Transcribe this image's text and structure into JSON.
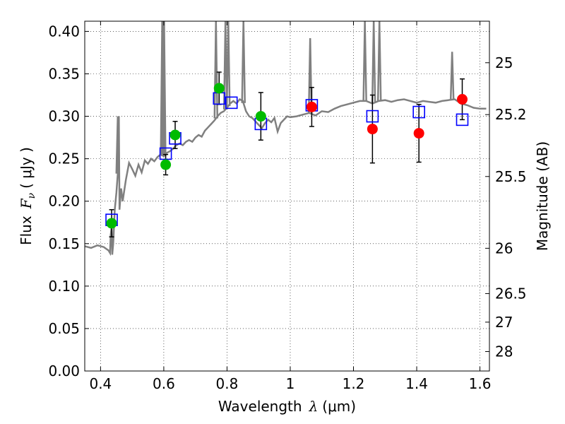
{
  "chart_data": {
    "type": "scatter",
    "title": "",
    "xlabel": {
      "prefix": "Wavelength",
      "symbol": "λ",
      "unit": "(μm)"
    },
    "ylabel": {
      "prefix": "Flux",
      "symbol": "F",
      "subscript": "ν",
      "unit": "( μJy )"
    },
    "ylabel_right": "Magnitude (AB)",
    "xlim": [
      0.35,
      1.63
    ],
    "ylim": [
      0.0,
      0.412
    ],
    "x_ticks": [
      0.4,
      0.6,
      0.8,
      1.0,
      1.2,
      1.4,
      1.6
    ],
    "x_tick_labels": [
      "0.4",
      "0.6",
      "0.8",
      "1",
      "1.2",
      "1.4",
      "1.6"
    ],
    "y_ticks": [
      0.0,
      0.05,
      0.1,
      0.15,
      0.2,
      0.25,
      0.3,
      0.35,
      0.4
    ],
    "y_tick_labels": [
      "0.00",
      "0.05",
      "0.10",
      "0.15",
      "0.20",
      "0.25",
      "0.30",
      "0.35",
      "0.40"
    ],
    "right_ticks": [
      {
        "mag": 25,
        "label": "25"
      },
      {
        "mag": 25.2,
        "label": "25.2"
      },
      {
        "mag": 25.5,
        "label": "25.5"
      },
      {
        "mag": 26,
        "label": "26"
      },
      {
        "mag": 26.5,
        "label": "26.5"
      },
      {
        "mag": 27,
        "label": "27"
      },
      {
        "mag": 28,
        "label": "28"
      }
    ],
    "grid": true,
    "colors": {
      "model": "#808080",
      "green": "#00bb00",
      "red": "#ff0000",
      "box": "#0000ff",
      "error": "#000000"
    },
    "series": [
      {
        "style": "green-circle",
        "points": [
          {
            "x": 0.435,
            "y": 0.174,
            "err": 0.016
          },
          {
            "x": 0.606,
            "y": 0.243,
            "err": 0.012
          },
          {
            "x": 0.636,
            "y": 0.278,
            "err": 0.016
          },
          {
            "x": 0.775,
            "y": 0.333,
            "err": 0.019
          },
          {
            "x": 0.907,
            "y": 0.3,
            "err": 0.028
          }
        ]
      },
      {
        "style": "red-circle",
        "points": [
          {
            "x": 1.068,
            "y": 0.311,
            "err": 0.023
          },
          {
            "x": 1.26,
            "y": 0.285,
            "err": 0.04
          },
          {
            "x": 1.407,
            "y": 0.28,
            "err": 0.034
          },
          {
            "x": 1.544,
            "y": 0.32,
            "err": 0.024
          }
        ]
      },
      {
        "style": "blue-open-square",
        "points": [
          {
            "x": 0.435,
            "y": 0.178
          },
          {
            "x": 0.606,
            "y": 0.256
          },
          {
            "x": 0.636,
            "y": 0.274
          },
          {
            "x": 0.775,
            "y": 0.321
          },
          {
            "x": 0.814,
            "y": 0.316
          },
          {
            "x": 0.907,
            "y": 0.291
          },
          {
            "x": 1.068,
            "y": 0.313
          },
          {
            "x": 1.26,
            "y": 0.3
          },
          {
            "x": 1.407,
            "y": 0.305
          },
          {
            "x": 1.544,
            "y": 0.296
          }
        ]
      },
      {
        "style": "model-line",
        "points": [
          [
            0.35,
            0.147
          ],
          [
            0.37,
            0.145
          ],
          [
            0.39,
            0.148
          ],
          [
            0.41,
            0.146
          ],
          [
            0.425,
            0.142
          ],
          [
            0.43,
            0.139
          ],
          [
            0.432,
            0.16
          ],
          [
            0.435,
            0.17
          ],
          [
            0.437,
            0.137
          ],
          [
            0.44,
            0.15
          ],
          [
            0.445,
            0.19
          ],
          [
            0.45,
            0.21
          ],
          [
            0.455,
            0.235
          ],
          [
            0.458,
            0.3
          ],
          [
            0.46,
            0.19
          ],
          [
            0.465,
            0.215
          ],
          [
            0.47,
            0.2
          ],
          [
            0.48,
            0.225
          ],
          [
            0.49,
            0.245
          ],
          [
            0.5,
            0.238
          ],
          [
            0.51,
            0.23
          ],
          [
            0.52,
            0.243
          ],
          [
            0.53,
            0.234
          ],
          [
            0.54,
            0.248
          ],
          [
            0.55,
            0.244
          ],
          [
            0.56,
            0.25
          ],
          [
            0.57,
            0.247
          ],
          [
            0.58,
            0.252
          ],
          [
            0.59,
            0.255
          ],
          [
            0.6,
            0.253
          ],
          [
            0.61,
            0.257
          ],
          [
            0.62,
            0.259
          ],
          [
            0.63,
            0.262
          ],
          [
            0.64,
            0.266
          ],
          [
            0.65,
            0.268
          ],
          [
            0.66,
            0.266
          ],
          [
            0.67,
            0.27
          ],
          [
            0.68,
            0.272
          ],
          [
            0.69,
            0.27
          ],
          [
            0.7,
            0.275
          ],
          [
            0.71,
            0.278
          ],
          [
            0.72,
            0.276
          ],
          [
            0.73,
            0.283
          ],
          [
            0.74,
            0.287
          ],
          [
            0.75,
            0.291
          ],
          [
            0.76,
            0.295
          ],
          [
            0.77,
            0.3
          ],
          [
            0.78,
            0.304
          ],
          [
            0.79,
            0.306
          ],
          [
            0.8,
            0.31
          ],
          [
            0.81,
            0.315
          ],
          [
            0.82,
            0.318
          ],
          [
            0.83,
            0.315
          ],
          [
            0.84,
            0.32
          ],
          [
            0.85,
            0.318
          ],
          [
            0.86,
            0.306
          ],
          [
            0.87,
            0.3
          ],
          [
            0.88,
            0.298
          ],
          [
            0.89,
            0.294
          ],
          [
            0.9,
            0.29
          ],
          [
            0.91,
            0.286
          ],
          [
            0.92,
            0.292
          ],
          [
            0.93,
            0.296
          ],
          [
            0.94,
            0.293
          ],
          [
            0.95,
            0.298
          ],
          [
            0.96,
            0.282
          ],
          [
            0.97,
            0.292
          ],
          [
            0.98,
            0.296
          ],
          [
            0.99,
            0.3
          ],
          [
            1.0,
            0.299
          ],
          [
            1.02,
            0.3
          ],
          [
            1.04,
            0.302
          ],
          [
            1.06,
            0.304
          ],
          [
            1.08,
            0.301
          ],
          [
            1.1,
            0.306
          ],
          [
            1.12,
            0.305
          ],
          [
            1.14,
            0.309
          ],
          [
            1.16,
            0.312
          ],
          [
            1.18,
            0.314
          ],
          [
            1.2,
            0.316
          ],
          [
            1.22,
            0.318
          ],
          [
            1.24,
            0.318
          ],
          [
            1.26,
            0.315
          ],
          [
            1.28,
            0.318
          ],
          [
            1.3,
            0.319
          ],
          [
            1.32,
            0.317
          ],
          [
            1.34,
            0.319
          ],
          [
            1.36,
            0.32
          ],
          [
            1.38,
            0.318
          ],
          [
            1.4,
            0.316
          ],
          [
            1.42,
            0.318
          ],
          [
            1.44,
            0.317
          ],
          [
            1.46,
            0.316
          ],
          [
            1.48,
            0.318
          ],
          [
            1.5,
            0.319
          ],
          [
            1.52,
            0.32
          ],
          [
            1.54,
            0.315
          ],
          [
            1.56,
            0.313
          ],
          [
            1.58,
            0.31
          ],
          [
            1.6,
            0.309
          ],
          [
            1.62,
            0.309
          ]
        ]
      }
    ],
    "emission_lines": [
      {
        "x": 0.4545,
        "peak": 0.3
      },
      {
        "x": 0.595,
        "peak": 0.412
      },
      {
        "x": 0.599,
        "peak": 0.412
      },
      {
        "x": 0.601,
        "peak": 0.412
      },
      {
        "x": 0.765,
        "peak": 0.412
      },
      {
        "x": 0.795,
        "peak": 0.412
      },
      {
        "x": 0.804,
        "peak": 0.412
      },
      {
        "x": 0.852,
        "peak": 0.412
      },
      {
        "x": 1.063,
        "peak": 0.392
      },
      {
        "x": 1.236,
        "peak": 0.412
      },
      {
        "x": 1.264,
        "peak": 0.412
      },
      {
        "x": 1.282,
        "peak": 0.412
      },
      {
        "x": 1.512,
        "peak": 0.376
      }
    ]
  }
}
